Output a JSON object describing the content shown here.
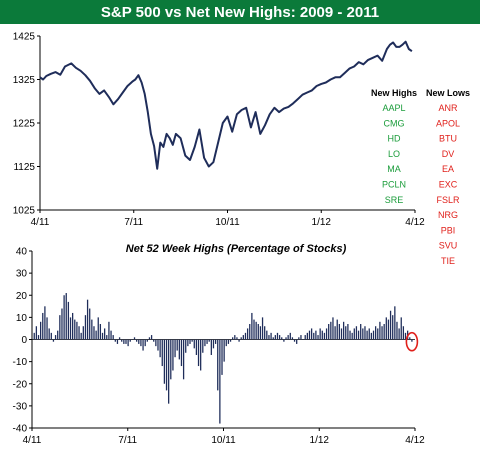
{
  "title": "S&P 500 vs Net New Highs: 2009 - 2011",
  "colors": {
    "title_bg": "#0b7a3a",
    "line": "#1f2d5a",
    "bars": "#1f2d5a",
    "highs": "#1a9c3a",
    "lows": "#e0201b",
    "marker": "#e0201b"
  },
  "chart_data": [
    {
      "type": "line",
      "title": "",
      "xlabel": "",
      "ylabel": "",
      "xticks": [
        "4/11",
        "7/11",
        "10/11",
        "1/12",
        "4/12"
      ],
      "ylim": [
        1025,
        1425
      ],
      "yticks": [
        1025,
        1125,
        1225,
        1325,
        1425
      ],
      "grid": false,
      "x_range": [
        0,
        12
      ],
      "series": [
        {
          "x": [
            0,
            0.1,
            0.2,
            0.35,
            0.5,
            0.65,
            0.8,
            1.0,
            1.15,
            1.3,
            1.45,
            1.6,
            1.75,
            1.9,
            2.05,
            2.2,
            2.35,
            2.5,
            2.65,
            2.8,
            2.95,
            3.05,
            3.15,
            3.25,
            3.35,
            3.45,
            3.55,
            3.65,
            3.75,
            3.85,
            3.95,
            4.05,
            4.15,
            4.25,
            4.35,
            4.5,
            4.65,
            4.8,
            4.95,
            5.1,
            5.25,
            5.4,
            5.55,
            5.7,
            5.85,
            6.0,
            6.15,
            6.3,
            6.45,
            6.6,
            6.75,
            6.9,
            7.05,
            7.2,
            7.35,
            7.5,
            7.65,
            7.8,
            7.95,
            8.1,
            8.25,
            8.4,
            8.55,
            8.7,
            8.85,
            9.0,
            9.15,
            9.3,
            9.45,
            9.6,
            9.75,
            9.9,
            10.05,
            10.2,
            10.35,
            10.5,
            10.65,
            10.8,
            10.95,
            11.1,
            11.2,
            11.3,
            11.4,
            11.5,
            11.6,
            11.7,
            11.8,
            11.9
          ],
          "y": [
            1330,
            1325,
            1333,
            1338,
            1342,
            1336,
            1355,
            1362,
            1352,
            1345,
            1335,
            1322,
            1305,
            1292,
            1300,
            1285,
            1268,
            1280,
            1295,
            1310,
            1320,
            1325,
            1335,
            1318,
            1292,
            1250,
            1200,
            1172,
            1120,
            1180,
            1170,
            1200,
            1190,
            1175,
            1200,
            1190,
            1150,
            1140,
            1170,
            1210,
            1145,
            1125,
            1135,
            1180,
            1225,
            1240,
            1205,
            1245,
            1255,
            1260,
            1215,
            1250,
            1200,
            1220,
            1245,
            1260,
            1250,
            1258,
            1262,
            1270,
            1280,
            1290,
            1295,
            1300,
            1310,
            1315,
            1318,
            1325,
            1330,
            1330,
            1340,
            1350,
            1355,
            1365,
            1360,
            1370,
            1375,
            1380,
            1368,
            1395,
            1405,
            1410,
            1400,
            1400,
            1405,
            1412,
            1395,
            1390
          ]
        }
      ],
      "legend": {
        "highs_header": "New Highs",
        "lows_header": "New Lows",
        "new_highs": [
          "AAPL",
          "CMG",
          "HD",
          "LO",
          "MA",
          "PCLN",
          "SRE"
        ],
        "new_lows": [
          "ANR",
          "APOL",
          "BTU",
          "DV",
          "EA",
          "EXC",
          "FSLR",
          "NRG",
          "PBI",
          "SVU",
          "TIE"
        ]
      }
    },
    {
      "type": "bar",
      "title": "Net 52 Week Highs (Percentage of Stocks)",
      "xlabel": "",
      "ylabel": "",
      "xticks": [
        "4/11",
        "7/11",
        "10/11",
        "1/12",
        "4/12"
      ],
      "ylim": [
        -40,
        40
      ],
      "yticks": [
        -40,
        -30,
        -20,
        -10,
        0,
        10,
        20,
        30,
        40
      ],
      "grid": false,
      "x_range": [
        0,
        12
      ],
      "values": [
        3,
        6,
        2,
        8,
        12,
        15,
        10,
        5,
        3,
        -1,
        2,
        4,
        11,
        14,
        20,
        21,
        17,
        10,
        12,
        9,
        8,
        6,
        3,
        6,
        11,
        18,
        14,
        9,
        6,
        4,
        10,
        7,
        3,
        5,
        2,
        8,
        4,
        2,
        -1,
        -2,
        1,
        -1,
        -2,
        -2,
        -3,
        -1,
        0,
        1,
        -1,
        -2,
        -3,
        -5,
        -3,
        -1,
        1,
        2,
        -1,
        -3,
        -5,
        -8,
        -12,
        -20,
        -23,
        -29,
        -18,
        -14,
        -8,
        -5,
        -9,
        -12,
        -18,
        -6,
        -3,
        -2,
        -1,
        -4,
        -7,
        -12,
        -14,
        -6,
        -3,
        -2,
        -1,
        -7,
        -4,
        -2,
        -23,
        -38,
        -16,
        -10,
        -3,
        -2,
        -1,
        1,
        2,
        1,
        -1,
        1,
        2,
        3,
        5,
        7,
        12,
        9,
        8,
        7,
        6,
        10,
        6,
        4,
        2,
        3,
        1,
        2,
        3,
        2,
        1,
        -1,
        1,
        2,
        3,
        1,
        -1,
        -2,
        1,
        2,
        0,
        2,
        3,
        4,
        5,
        3,
        4,
        2,
        5,
        4,
        3,
        5,
        7,
        8,
        10,
        6,
        9,
        7,
        5,
        8,
        6,
        7,
        4,
        3,
        5,
        6,
        4,
        7,
        5,
        6,
        4,
        5,
        3,
        4,
        6,
        5,
        8,
        6,
        7,
        10,
        9,
        13,
        11,
        15,
        8,
        5,
        10,
        6,
        3,
        4,
        1,
        -1
      ]
    }
  ]
}
